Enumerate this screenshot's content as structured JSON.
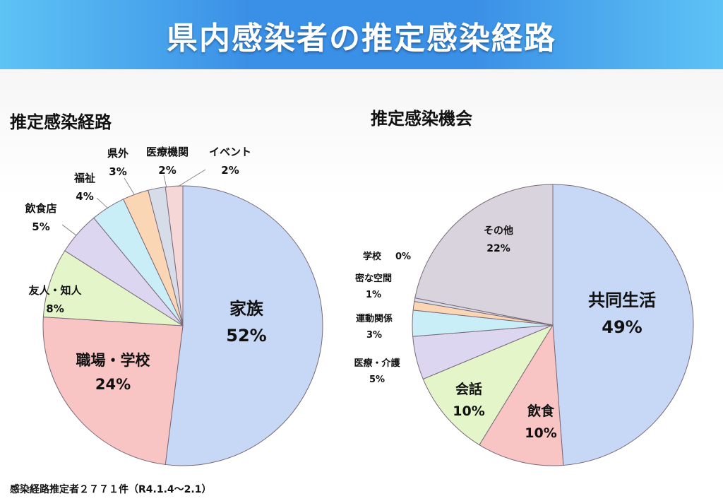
{
  "header": {
    "title": "県内感染者の推定感染経路"
  },
  "footnote": "感染経路推定者２７７１件（R4.1.4～2.1）",
  "chart_data": [
    {
      "type": "pie",
      "title": "推定感染経路",
      "slices": [
        {
          "label": "家族",
          "value": 52,
          "value_label": "52%",
          "color": "#c7d8f6"
        },
        {
          "label": "職場・学校",
          "value": 24,
          "value_label": "24%",
          "color": "#f9c4c4"
        },
        {
          "label": "友人・知人",
          "value": 8,
          "value_label": "8%",
          "color": "#e4f5c9"
        },
        {
          "label": "飲食店",
          "value": 5,
          "value_label": "5%",
          "color": "#dcd6f0"
        },
        {
          "label": "福祉",
          "value": 4,
          "value_label": "4%",
          "color": "#c9eef8"
        },
        {
          "label": "県外",
          "value": 3,
          "value_label": "3%",
          "color": "#fbd6b4"
        },
        {
          "label": "医療機関",
          "value": 2,
          "value_label": "2%",
          "color": "#d7dde8"
        },
        {
          "label": "イベント",
          "value": 2,
          "value_label": "2%",
          "color": "#f6d7d7"
        }
      ]
    },
    {
      "type": "pie",
      "title": "推定感染機会",
      "slices": [
        {
          "label": "共同生活",
          "value": 49,
          "value_label": "49%",
          "color": "#c7d8f6"
        },
        {
          "label": "飲食",
          "value": 10,
          "value_label": "10%",
          "color": "#f9c4c4"
        },
        {
          "label": "会話",
          "value": 10,
          "value_label": "10%",
          "color": "#e4f5c9"
        },
        {
          "label": "医療・介護",
          "value": 5,
          "value_label": "5%",
          "color": "#dcd6f0"
        },
        {
          "label": "運動関係",
          "value": 3,
          "value_label": "3%",
          "color": "#c9eef8"
        },
        {
          "label": "密な空間",
          "value": 1,
          "value_label": "1%",
          "color": "#fbd6b4"
        },
        {
          "label": "学校",
          "value": 0.4,
          "value_label": "0%",
          "color": "#d7dde8"
        },
        {
          "label": "その他",
          "value": 22,
          "value_label": "22%",
          "color": "#d8d3dc"
        }
      ]
    }
  ]
}
